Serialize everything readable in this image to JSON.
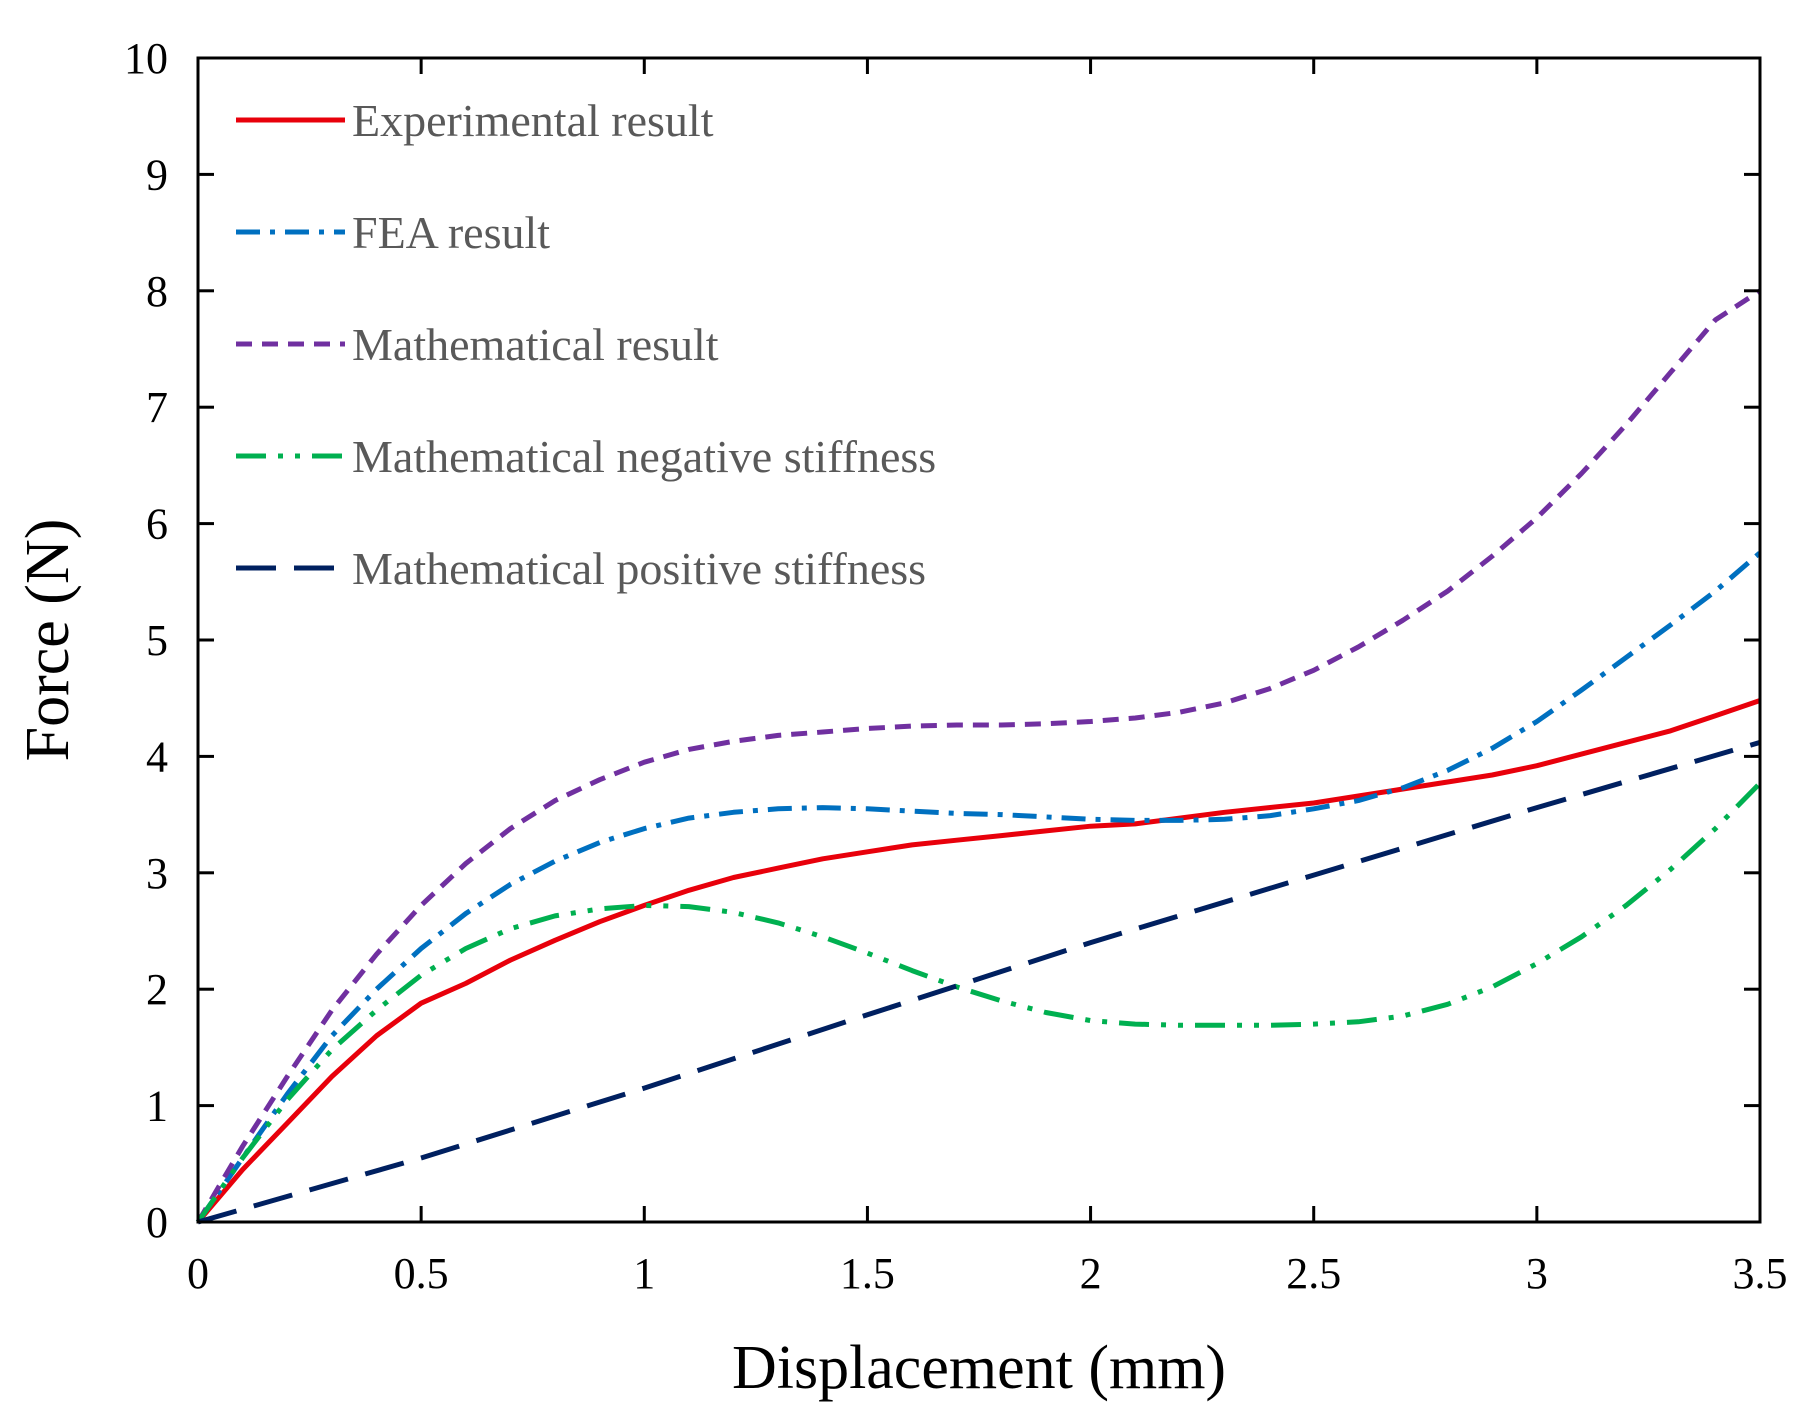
{
  "chart_data": {
    "type": "line",
    "title": "",
    "xlabel": "Displacement (mm)",
    "ylabel": "Force (N)",
    "xlim": [
      0,
      3.5
    ],
    "ylim": [
      0,
      10
    ],
    "xticks": [
      0,
      0.5,
      1,
      1.5,
      2,
      2.5,
      3,
      3.5
    ],
    "yticks": [
      0,
      1,
      2,
      3,
      4,
      5,
      6,
      7,
      8,
      9,
      10
    ],
    "xtick_labels": [
      "0",
      "0.5",
      "1",
      "1.5",
      "2",
      "2.5",
      "3",
      "3.5"
    ],
    "ytick_labels": [
      "0",
      "1",
      "2",
      "3",
      "4",
      "5",
      "6",
      "7",
      "8",
      "9",
      "10"
    ],
    "grid": false,
    "legend_position": "top-left",
    "series": [
      {
        "name": "Experimental result",
        "color": "#e8000b",
        "dash": "solid",
        "x": [
          0,
          0.1,
          0.2,
          0.3,
          0.4,
          0.5,
          0.6,
          0.7,
          0.8,
          0.9,
          1.0,
          1.1,
          1.2,
          1.3,
          1.4,
          1.5,
          1.6,
          1.7,
          1.8,
          1.9,
          2.0,
          2.1,
          2.2,
          2.3,
          2.4,
          2.5,
          2.6,
          2.7,
          2.8,
          2.9,
          3.0,
          3.1,
          3.2,
          3.3,
          3.4,
          3.5
        ],
        "y": [
          0,
          0.45,
          0.85,
          1.25,
          1.6,
          1.88,
          2.05,
          2.25,
          2.42,
          2.58,
          2.72,
          2.85,
          2.96,
          3.04,
          3.12,
          3.18,
          3.24,
          3.28,
          3.32,
          3.36,
          3.4,
          3.42,
          3.47,
          3.52,
          3.56,
          3.6,
          3.66,
          3.72,
          3.78,
          3.84,
          3.92,
          4.02,
          4.12,
          4.22,
          4.35,
          4.48
        ]
      },
      {
        "name": "FEA result",
        "color": "#0070c0",
        "dash": "dashdot",
        "x": [
          0,
          0.1,
          0.2,
          0.3,
          0.4,
          0.5,
          0.6,
          0.7,
          0.8,
          0.9,
          1.0,
          1.1,
          1.2,
          1.3,
          1.4,
          1.5,
          1.6,
          1.7,
          1.8,
          1.9,
          2.0,
          2.1,
          2.2,
          2.3,
          2.4,
          2.5,
          2.6,
          2.7,
          2.8,
          2.9,
          3.0,
          3.1,
          3.2,
          3.3,
          3.4,
          3.5
        ],
        "y": [
          0,
          0.55,
          1.1,
          1.6,
          2.0,
          2.35,
          2.65,
          2.9,
          3.1,
          3.26,
          3.38,
          3.47,
          3.52,
          3.55,
          3.56,
          3.55,
          3.53,
          3.51,
          3.5,
          3.48,
          3.46,
          3.45,
          3.45,
          3.46,
          3.49,
          3.55,
          3.62,
          3.73,
          3.88,
          4.07,
          4.3,
          4.57,
          4.85,
          5.13,
          5.42,
          5.75
        ]
      },
      {
        "name": "Mathematical result",
        "color": "#7030a0",
        "dash": "dash",
        "x": [
          0,
          0.1,
          0.2,
          0.3,
          0.4,
          0.5,
          0.6,
          0.7,
          0.8,
          0.9,
          1.0,
          1.1,
          1.2,
          1.3,
          1.4,
          1.5,
          1.6,
          1.7,
          1.8,
          1.9,
          2.0,
          2.1,
          2.2,
          2.3,
          2.4,
          2.5,
          2.6,
          2.7,
          2.8,
          2.9,
          3.0,
          3.1,
          3.2,
          3.3,
          3.4,
          3.5
        ],
        "y": [
          0,
          0.65,
          1.25,
          1.82,
          2.3,
          2.72,
          3.08,
          3.38,
          3.62,
          3.8,
          3.95,
          4.06,
          4.13,
          4.18,
          4.21,
          4.24,
          4.26,
          4.27,
          4.27,
          4.28,
          4.3,
          4.33,
          4.38,
          4.46,
          4.58,
          4.74,
          4.94,
          5.17,
          5.42,
          5.72,
          6.05,
          6.43,
          6.85,
          7.3,
          7.75,
          8.0
        ]
      },
      {
        "name": "Mathematical negative stiffness",
        "color": "#00b050",
        "dash": "dashdotdot",
        "x": [
          0,
          0.1,
          0.2,
          0.3,
          0.4,
          0.5,
          0.6,
          0.7,
          0.8,
          0.9,
          1.0,
          1.1,
          1.2,
          1.3,
          1.4,
          1.5,
          1.6,
          1.7,
          1.8,
          1.9,
          2.0,
          2.1,
          2.2,
          2.3,
          2.4,
          2.5,
          2.6,
          2.7,
          2.8,
          2.9,
          3.0,
          3.1,
          3.2,
          3.3,
          3.4,
          3.5
        ],
        "y": [
          0,
          0.55,
          1.05,
          1.48,
          1.82,
          2.12,
          2.35,
          2.52,
          2.63,
          2.69,
          2.72,
          2.71,
          2.66,
          2.57,
          2.45,
          2.31,
          2.16,
          2.02,
          1.9,
          1.8,
          1.73,
          1.7,
          1.69,
          1.69,
          1.69,
          1.7,
          1.72,
          1.77,
          1.87,
          2.02,
          2.22,
          2.45,
          2.72,
          3.03,
          3.38,
          3.77
        ]
      },
      {
        "name": "Mathematical positive stiffness",
        "color": "#002060",
        "dash": "longdash",
        "x": [
          0,
          0.5,
          1.0,
          1.5,
          2.0,
          2.5,
          3.0,
          3.5
        ],
        "y": [
          0,
          0.55,
          1.15,
          1.78,
          2.4,
          2.98,
          3.56,
          4.12
        ]
      }
    ]
  }
}
